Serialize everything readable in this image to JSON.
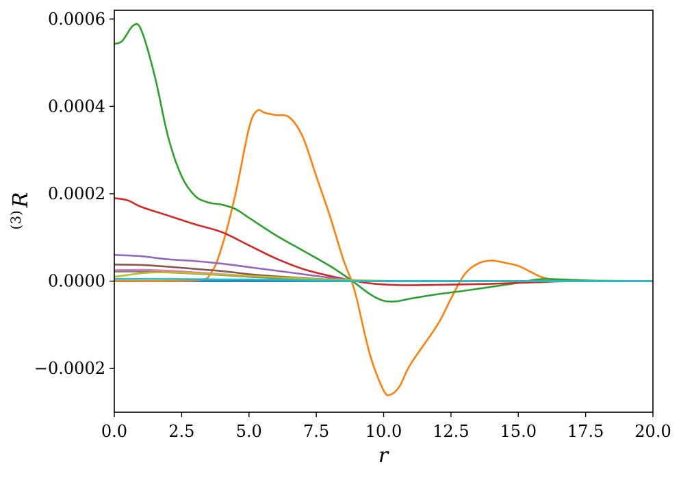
{
  "chart_data": {
    "type": "line",
    "xlabel": "r",
    "ylabel": {
      "prefix": "(3)",
      "symbol": "R"
    },
    "xlim": [
      0,
      20
    ],
    "ylim": [
      -0.0003,
      0.00062
    ],
    "grid": false,
    "legend": "none",
    "x_ticks": [
      {
        "value": 0,
        "label": "0.0"
      },
      {
        "value": 2.5,
        "label": "2.5"
      },
      {
        "value": 5,
        "label": "5.0"
      },
      {
        "value": 7.5,
        "label": "7.5"
      },
      {
        "value": 10,
        "label": "10.0"
      },
      {
        "value": 12.5,
        "label": "12.5"
      },
      {
        "value": 15,
        "label": "15.0"
      },
      {
        "value": 17.5,
        "label": "17.5"
      },
      {
        "value": 20,
        "label": "20.0"
      }
    ],
    "y_ticks": [
      {
        "value": -0.0002,
        "label": "−0.0002"
      },
      {
        "value": 0,
        "label": "0.0000"
      },
      {
        "value": 0.0002,
        "label": "0.0002"
      },
      {
        "value": 0.0004,
        "label": "0.0004"
      },
      {
        "value": 0.0006,
        "label": "0.0006"
      }
    ],
    "series": [
      {
        "color": "#1f77b4",
        "points": [
          [
            0,
            0
          ],
          [
            20,
            0
          ]
        ]
      },
      {
        "color": "#ff7f0e",
        "points": [
          [
            0,
            0
          ],
          [
            3,
            2e-06
          ],
          [
            3.6,
            2e-05
          ],
          [
            4,
            8e-05
          ],
          [
            4.5,
            0.0002
          ],
          [
            5,
            0.00035
          ],
          [
            5.3,
            0.00039
          ],
          [
            5.6,
            0.000385
          ],
          [
            6,
            0.00038
          ],
          [
            6.5,
            0.000375
          ],
          [
            7,
            0.00033
          ],
          [
            7.5,
            0.00024
          ],
          [
            8,
            0.00015
          ],
          [
            8.5,
            5e-05
          ],
          [
            8.8,
            2e-06
          ],
          [
            9,
            -4e-05
          ],
          [
            9.5,
            -0.00017
          ],
          [
            10,
            -0.00025
          ],
          [
            10.25,
            -0.00026
          ],
          [
            10.6,
            -0.00024
          ],
          [
            11,
            -0.00019
          ],
          [
            12,
            -0.0001
          ],
          [
            12.5,
            -4e-05
          ],
          [
            13,
            1.5e-05
          ],
          [
            13.5,
            4e-05
          ],
          [
            14,
            4.7e-05
          ],
          [
            14.5,
            4.2e-05
          ],
          [
            15,
            3.5e-05
          ],
          [
            15.5,
            2e-05
          ],
          [
            16,
            7e-06
          ],
          [
            17,
            1e-06
          ],
          [
            20,
            0
          ]
        ]
      },
      {
        "color": "#2ca02c",
        "points": [
          [
            0,
            0.000543
          ],
          [
            0.3,
            0.00055
          ],
          [
            0.7,
            0.000585
          ],
          [
            1,
            0.000575
          ],
          [
            1.5,
            0.00047
          ],
          [
            2,
            0.00033
          ],
          [
            2.5,
            0.00024
          ],
          [
            3,
            0.000195
          ],
          [
            3.5,
            0.00018
          ],
          [
            4,
            0.000175
          ],
          [
            4.5,
            0.000165
          ],
          [
            5,
            0.000145
          ],
          [
            6,
            0.000105
          ],
          [
            7,
            7e-05
          ],
          [
            8,
            3.5e-05
          ],
          [
            8.8,
            2e-06
          ],
          [
            9.5,
            -3e-05
          ],
          [
            10,
            -4.5e-05
          ],
          [
            10.5,
            -4.6e-05
          ],
          [
            11,
            -4e-05
          ],
          [
            12,
            -3e-05
          ],
          [
            13,
            -2.2e-05
          ],
          [
            14,
            -1.3e-05
          ],
          [
            15,
            -4e-06
          ],
          [
            15.5,
            2e-06
          ],
          [
            16,
            5e-06
          ],
          [
            17,
            3e-06
          ],
          [
            18,
            1e-06
          ],
          [
            20,
            0
          ]
        ]
      },
      {
        "color": "#d62728",
        "points": [
          [
            0,
            0.00019
          ],
          [
            0.5,
            0.000185
          ],
          [
            1,
            0.00017
          ],
          [
            2,
            0.00015
          ],
          [
            3,
            0.00013
          ],
          [
            4,
            0.000112
          ],
          [
            5,
            8.2e-05
          ],
          [
            6,
            5.2e-05
          ],
          [
            7,
            2.8e-05
          ],
          [
            8,
            1.2e-05
          ],
          [
            8.8,
            2e-06
          ],
          [
            9.5,
            -5e-06
          ],
          [
            10.5,
            -9e-06
          ],
          [
            11.5,
            -9e-06
          ],
          [
            12.5,
            -8e-06
          ],
          [
            14,
            -6e-06
          ],
          [
            15.5,
            -3e-06
          ],
          [
            17,
            0
          ],
          [
            20,
            0
          ]
        ]
      },
      {
        "color": "#9467bd",
        "points": [
          [
            0,
            6e-05
          ],
          [
            1,
            5.7e-05
          ],
          [
            2,
            5e-05
          ],
          [
            3,
            4.6e-05
          ],
          [
            4,
            4e-05
          ],
          [
            5,
            3.2e-05
          ],
          [
            6,
            2.4e-05
          ],
          [
            7,
            1.6e-05
          ],
          [
            8,
            8e-06
          ],
          [
            9,
            2e-06
          ],
          [
            10,
            0
          ],
          [
            20,
            0
          ]
        ]
      },
      {
        "color": "#8c564b",
        "points": [
          [
            0,
            3.8e-05
          ],
          [
            1,
            3.7e-05
          ],
          [
            2,
            3.3e-05
          ],
          [
            3,
            2.8e-05
          ],
          [
            4,
            2.3e-05
          ],
          [
            5,
            1.6e-05
          ],
          [
            6,
            1.1e-05
          ],
          [
            7,
            7e-06
          ],
          [
            8,
            4e-06
          ],
          [
            9,
            1e-06
          ],
          [
            10,
            0
          ],
          [
            20,
            0
          ]
        ]
      },
      {
        "color": "#e377c2",
        "points": [
          [
            0,
            2.5e-05
          ],
          [
            1,
            2.6e-05
          ],
          [
            2,
            2.4e-05
          ],
          [
            3,
            2e-05
          ],
          [
            4,
            1.6e-05
          ],
          [
            5,
            1.2e-05
          ],
          [
            6,
            8e-06
          ],
          [
            7,
            5e-06
          ],
          [
            8,
            3e-06
          ],
          [
            9,
            1e-06
          ],
          [
            10,
            0
          ],
          [
            20,
            0
          ]
        ]
      },
      {
        "color": "#7f7f7f",
        "points": [
          [
            0,
            2.2e-05
          ],
          [
            1,
            2.2e-05
          ],
          [
            2,
            2e-05
          ],
          [
            3,
            1.7e-05
          ],
          [
            4,
            1.4e-05
          ],
          [
            5,
            1e-05
          ],
          [
            6,
            7e-06
          ],
          [
            7,
            5e-06
          ],
          [
            8,
            3e-06
          ],
          [
            9,
            1e-06
          ],
          [
            10,
            0
          ],
          [
            20,
            0
          ]
        ]
      },
      {
        "color": "#bcbd22",
        "points": [
          [
            0,
            1e-05
          ],
          [
            0.5,
            1.4e-05
          ],
          [
            1,
            1.8e-05
          ],
          [
            1.5,
            2e-05
          ],
          [
            2,
            2e-05
          ],
          [
            3,
            1.8e-05
          ],
          [
            4,
            1.5e-05
          ],
          [
            5,
            1.2e-05
          ],
          [
            6,
            9e-06
          ],
          [
            7,
            6e-06
          ],
          [
            8,
            4e-06
          ],
          [
            9,
            2e-06
          ],
          [
            10,
            1e-06
          ],
          [
            11,
            0
          ],
          [
            20,
            0
          ]
        ]
      },
      {
        "color": "#17becf",
        "points": [
          [
            0,
            5e-06
          ],
          [
            2,
            5e-06
          ],
          [
            4,
            4e-06
          ],
          [
            6,
            3e-06
          ],
          [
            8,
            1e-06
          ],
          [
            10,
            0
          ],
          [
            20,
            0
          ]
        ]
      }
    ]
  }
}
